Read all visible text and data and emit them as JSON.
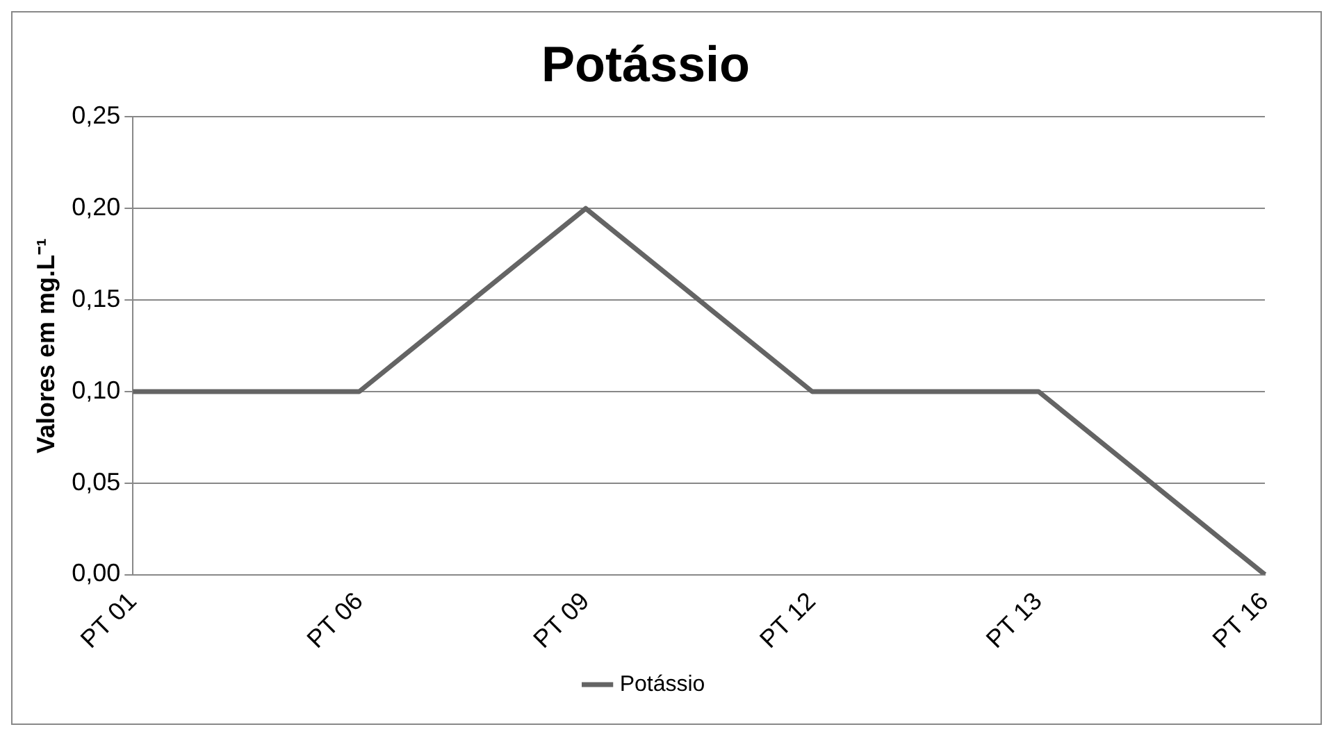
{
  "chart_data": {
    "type": "line",
    "title": "Potássio",
    "ylabel": "Valores em mg.L⁻¹",
    "categories": [
      "PT 01",
      "PT 06",
      "PT 09",
      "PT 12",
      "PT 13",
      "PT 16"
    ],
    "series": [
      {
        "name": "Potássio",
        "color": "#646464",
        "values": [
          0.1,
          0.1,
          0.2,
          0.1,
          0.1,
          0
        ]
      }
    ],
    "ylim": [
      0,
      0.25
    ],
    "yticks": [
      {
        "value": 0,
        "label": "0,00"
      },
      {
        "value": 0.05,
        "label": "0,05"
      },
      {
        "value": 0.1,
        "label": "0,10"
      },
      {
        "value": 0.15,
        "label": "0,15"
      },
      {
        "value": 0.2,
        "label": "0,20"
      },
      {
        "value": 0.25,
        "label": "0,25"
      }
    ],
    "grid": "y",
    "legend": "bottom",
    "marker": "none",
    "line_style": "solid"
  }
}
